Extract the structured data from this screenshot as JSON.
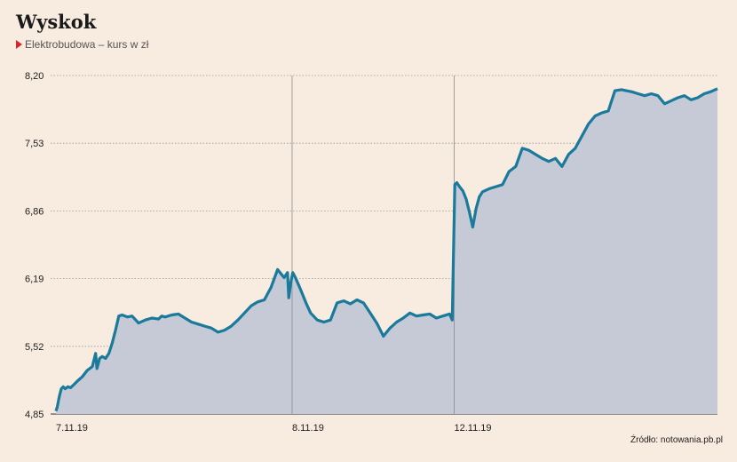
{
  "title": "Wyskok",
  "subtitle": "Elektrobudowa – kurs w zł",
  "source": "Źródło: notowania.pb.pl",
  "colors": {
    "line": "#1a7a9c",
    "area": "#c6cad6",
    "grid": "#9a9a9a",
    "background": "#f8ebdf",
    "marker": "#d8262c"
  },
  "chart_data": {
    "type": "area",
    "title": "Wyskok",
    "subtitle": "Elektrobudowa – kurs w zł",
    "ylabel": "kurs w zł",
    "ylim": [
      4.85,
      8.2
    ],
    "yticks": [
      "4,85",
      "5,52",
      "6,19",
      "6,86",
      "7,53",
      "8,20"
    ],
    "ytick_values": [
      4.85,
      5.52,
      6.19,
      6.86,
      7.53,
      8.2
    ],
    "xticks": [
      "7.11.19",
      "8.11.19",
      "12.11.19"
    ],
    "xtick_positions": [
      0,
      0.357,
      0.602
    ],
    "grid": true,
    "series": [
      {
        "x": [
          0,
          0.002,
          0.005,
          0.008,
          0.011,
          0.014,
          0.018,
          0.022,
          0.027,
          0.033,
          0.04,
          0.047,
          0.055,
          0.06,
          0.062,
          0.066,
          0.07,
          0.075,
          0.08,
          0.085,
          0.09,
          0.095,
          0.1,
          0.108,
          0.115,
          0.125,
          0.135,
          0.145,
          0.155,
          0.16,
          0.165,
          0.175,
          0.185,
          0.195,
          0.205,
          0.215,
          0.225,
          0.235,
          0.245,
          0.255,
          0.265,
          0.275,
          0.285,
          0.295,
          0.305,
          0.315,
          0.325,
          0.335,
          0.345,
          0.35,
          0.352,
          0.355,
          0.358,
          0.362,
          0.37,
          0.378,
          0.385,
          0.395,
          0.405,
          0.415,
          0.425,
          0.435,
          0.445,
          0.455,
          0.465,
          0.475,
          0.485,
          0.495,
          0.505,
          0.515,
          0.525,
          0.535,
          0.545,
          0.555,
          0.565,
          0.575,
          0.585,
          0.595,
          0.599,
          0.603,
          0.606,
          0.61,
          0.615,
          0.62,
          0.625,
          0.63,
          0.635,
          0.64,
          0.645,
          0.655,
          0.665,
          0.675,
          0.685,
          0.695,
          0.705,
          0.715,
          0.725,
          0.735,
          0.745,
          0.755,
          0.765,
          0.775,
          0.785,
          0.795,
          0.805,
          0.815,
          0.825,
          0.835,
          0.845,
          0.855,
          0.862,
          0.87,
          0.88,
          0.89,
          0.9,
          0.91,
          0.92,
          0.93,
          0.94,
          0.95,
          0.96,
          0.97,
          0.98,
          0.99,
          1.0
        ],
        "values": [
          4.88,
          4.92,
          5.02,
          5.1,
          5.12,
          5.1,
          5.12,
          5.11,
          5.14,
          5.18,
          5.22,
          5.28,
          5.32,
          5.45,
          5.3,
          5.4,
          5.42,
          5.4,
          5.45,
          5.55,
          5.68,
          5.82,
          5.83,
          5.81,
          5.82,
          5.75,
          5.78,
          5.8,
          5.79,
          5.82,
          5.81,
          5.83,
          5.84,
          5.8,
          5.76,
          5.74,
          5.72,
          5.7,
          5.66,
          5.68,
          5.72,
          5.78,
          5.85,
          5.92,
          5.96,
          5.98,
          6.1,
          6.28,
          6.2,
          6.25,
          6.0,
          6.15,
          6.25,
          6.2,
          6.08,
          5.95,
          5.85,
          5.78,
          5.76,
          5.78,
          5.95,
          5.97,
          5.94,
          5.98,
          5.95,
          5.85,
          5.75,
          5.62,
          5.7,
          5.76,
          5.8,
          5.85,
          5.82,
          5.83,
          5.84,
          5.8,
          5.82,
          5.84,
          5.78,
          7.12,
          7.14,
          7.1,
          7.06,
          6.98,
          6.85,
          6.7,
          6.88,
          7.0,
          7.05,
          7.08,
          7.1,
          7.12,
          7.25,
          7.3,
          7.48,
          7.46,
          7.42,
          7.38,
          7.35,
          7.38,
          7.3,
          7.42,
          7.48,
          7.6,
          7.72,
          7.8,
          7.83,
          7.85,
          8.05,
          8.06,
          8.05,
          8.04,
          8.02,
          8.0,
          8.02,
          8.0,
          7.92,
          7.95,
          7.98,
          8.0,
          7.96,
          7.98,
          8.02,
          8.04,
          8.07
        ]
      }
    ]
  }
}
